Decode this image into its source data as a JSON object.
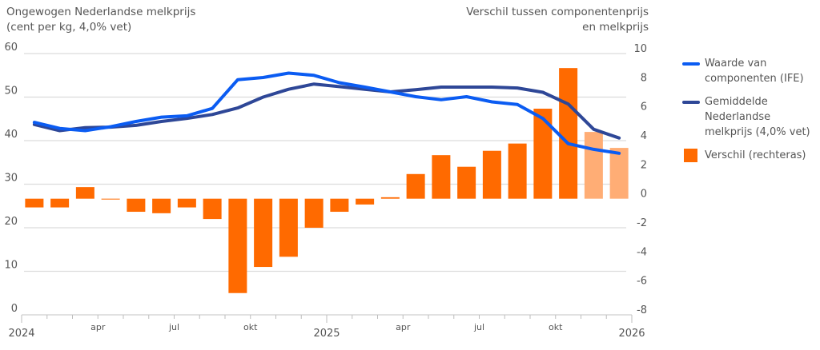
{
  "titles": {
    "left_line1": "Ongewogen Nederlandse melkprijs",
    "left_line2": "(cent per kg, 4,0% vet)",
    "right_line1": "Verschil tussen componentenprijs",
    "right_line2": "en melkprijs"
  },
  "legend": [
    {
      "label_lines": [
        "Waarde van",
        "componenten (IFE)"
      ],
      "color": "#0b5cf2",
      "kind": "line"
    },
    {
      "label_lines": [
        "Gemiddelde",
        "Nederlandse",
        "melkprijs (4,0% vet)"
      ],
      "color": "#2e4797",
      "kind": "line"
    },
    {
      "label_lines": [
        "Verschil (rechteras)"
      ],
      "color": "#ff6a00",
      "kind": "box"
    }
  ],
  "chart_data": {
    "type": "bar+line",
    "title": "Ongewogen Nederlandse melkprijs (cent per kg, 4,0% vet)",
    "ylabel_left": "Ongewogen Nederlandse melkprijs (cent per kg, 4,0% vet)",
    "ylabel_right": "Verschil tussen componentenprijs en melkprijs",
    "ylim_left": [
      0,
      60
    ],
    "ylim_right": [
      -8,
      10
    ],
    "yticks_left": [
      "0",
      "10",
      "20",
      "30",
      "40",
      "50",
      "60"
    ],
    "yticks_right": [
      "-8",
      "-6",
      "-4",
      "-2",
      "0",
      "2",
      "4",
      "6",
      "8",
      "10"
    ],
    "xticks_major": [
      "2024",
      "2025",
      "2026"
    ],
    "xticks_minor_labels": [
      "apr",
      "jul",
      "okt",
      "apr",
      "jul",
      "okt"
    ],
    "grid": "horizontal",
    "legend_position": "right",
    "months": [
      "2024-01",
      "2024-02",
      "2024-03",
      "2024-04",
      "2024-05",
      "2024-06",
      "2024-07",
      "2024-08",
      "2024-09",
      "2024-10",
      "2024-11",
      "2024-12",
      "2025-01",
      "2025-02",
      "2025-03",
      "2025-04",
      "2025-05",
      "2025-06",
      "2025-07",
      "2025-08",
      "2025-09",
      "2025-10",
      "2025-11",
      "2025-12"
    ],
    "series": [
      {
        "name": "Waarde van componenten (IFE)",
        "type": "line",
        "axis": "left",
        "color": "#0b5cf2",
        "values": [
          44.2,
          42.8,
          42.3,
          43.2,
          44.4,
          45.4,
          45.7,
          47.4,
          54.0,
          54.5,
          55.5,
          55.0,
          53.3,
          52.3,
          51.2,
          50.1,
          49.4,
          50.1,
          48.9,
          48.3,
          45.1,
          39.3,
          38.0,
          37.1
        ]
      },
      {
        "name": "Gemiddelde Nederlandse melkprijs (4,0% vet)",
        "type": "line",
        "axis": "left",
        "color": "#2e4797",
        "values": [
          43.7,
          42.3,
          43.0,
          43.1,
          43.5,
          44.4,
          45.1,
          46.0,
          47.5,
          50.0,
          51.8,
          53.0,
          52.4,
          51.8,
          51.2,
          51.7,
          52.3,
          52.3,
          52.3,
          52.1,
          51.1,
          48.4,
          42.6,
          40.6
        ]
      },
      {
        "name": "Verschil (rechteras)",
        "type": "bar",
        "axis": "right",
        "color": "#ff6a00",
        "light_color": "#ffad75",
        "light_from_index": 22,
        "values": [
          -0.6,
          -0.6,
          0.8,
          -0.05,
          -0.9,
          -1.0,
          -0.6,
          -1.4,
          -6.5,
          -4.7,
          -4.0,
          -2.0,
          -0.9,
          -0.4,
          0.1,
          1.7,
          3.0,
          2.2,
          3.3,
          3.8,
          6.2,
          9.0,
          4.6,
          3.5
        ]
      }
    ]
  }
}
